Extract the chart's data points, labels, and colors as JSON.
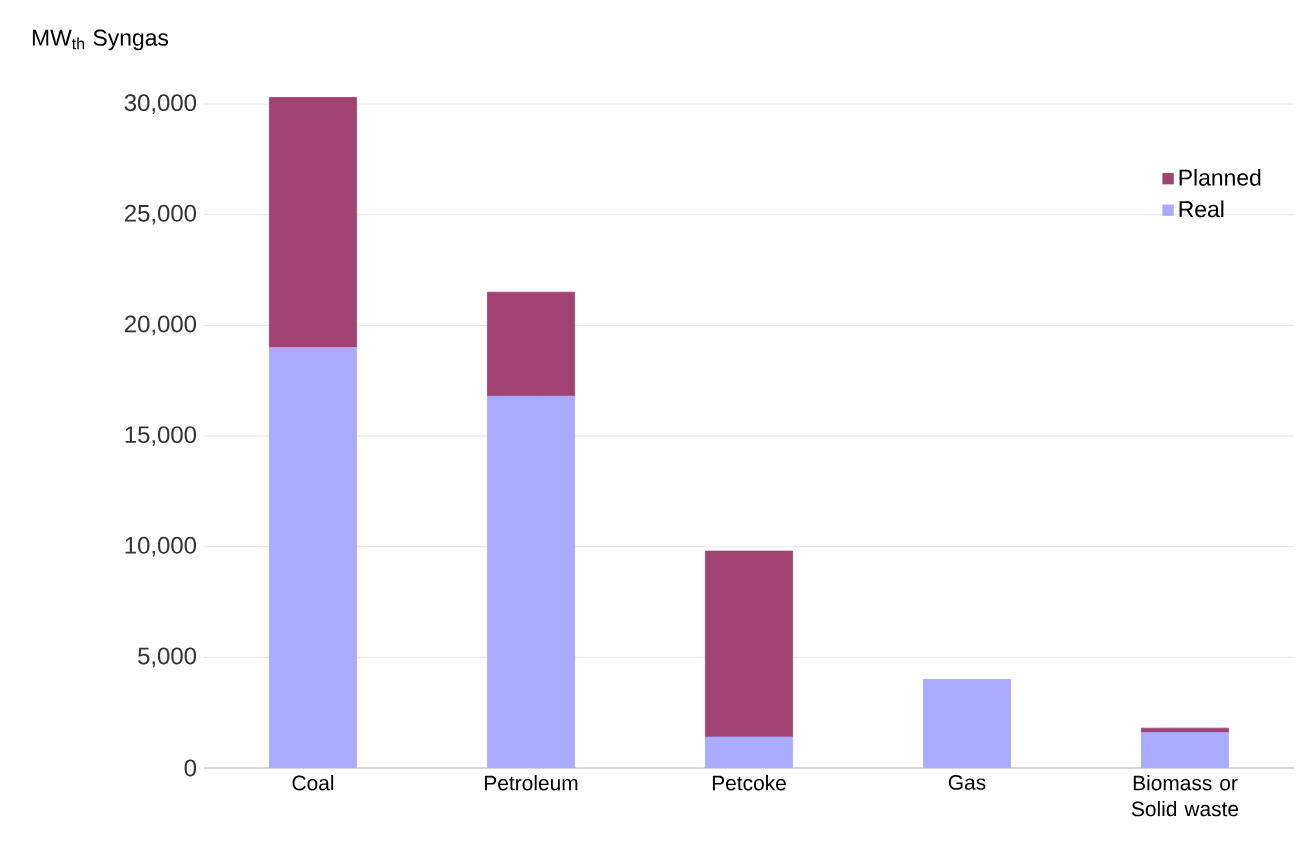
{
  "chart_data": {
    "type": "bar",
    "stacked": true,
    "ylabel": "MW$_{th}$ Syngas",
    "categories": [
      "Coal",
      "Petroleum",
      "Petcoke",
      "Gas",
      "Biomass or Solid waste"
    ],
    "series": [
      {
        "name": "Real",
        "color": "#aaaaff",
        "values": [
          19000,
          16800,
          1400,
          4000,
          1600
        ]
      },
      {
        "name": "Planned",
        "color": "#a04373",
        "values": [
          11300,
          4700,
          8400,
          null,
          200
        ]
      }
    ],
    "ylim": [
      0,
      30500
    ],
    "yticks": [
      {
        "value": 0,
        "label": "0"
      },
      {
        "value": 5000,
        "label": "5,000"
      },
      {
        "value": 10000,
        "label": "10,000"
      },
      {
        "value": 15000,
        "label": "15,000"
      },
      {
        "value": 20000,
        "label": "20,000"
      },
      {
        "value": 25000,
        "label": "25,000"
      },
      {
        "value": 30000,
        "label": "30,000"
      }
    ],
    "grid": "y",
    "legend": "top right"
  }
}
